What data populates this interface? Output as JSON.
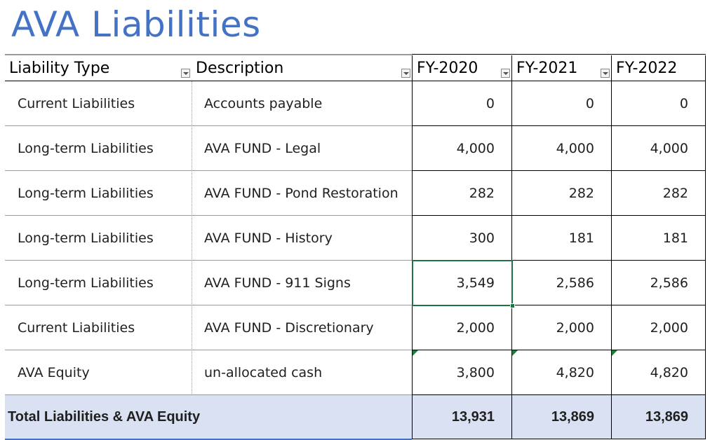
{
  "sheet_title": "AVA Liabilities",
  "headers": {
    "liability_type": "Liability Type",
    "description": "Description",
    "fy2020": "FY-2020",
    "fy2021": "FY-2021",
    "fy2022": "FY-2022"
  },
  "rows": [
    {
      "type": "Current Liabilities",
      "description": "Accounts payable",
      "fy2020": "0",
      "fy2021": "0",
      "fy2022": "0"
    },
    {
      "type": "Long-term Liabilities",
      "description": "AVA FUND - Legal",
      "fy2020": "4,000",
      "fy2021": "4,000",
      "fy2022": "4,000"
    },
    {
      "type": "Long-term Liabilities",
      "description": "AVA FUND - Pond Restoration",
      "fy2020": "282",
      "fy2021": "282",
      "fy2022": "282"
    },
    {
      "type": "Long-term Liabilities",
      "description": "AVA FUND - History",
      "fy2020": "300",
      "fy2021": "181",
      "fy2022": "181"
    },
    {
      "type": "Long-term Liabilities",
      "description": "AVA FUND - 911 Signs",
      "fy2020": "3,549",
      "fy2021": "2,586",
      "fy2022": "2,586"
    },
    {
      "type": "Current Liabilities",
      "description": "AVA FUND - Discretionary",
      "fy2020": "2,000",
      "fy2021": "2,000",
      "fy2022": "2,000"
    },
    {
      "type": "AVA Equity",
      "description": "un-allocated cash",
      "fy2020": "3,800",
      "fy2021": "4,820",
      "fy2022": "4,820"
    }
  ],
  "total": {
    "label": "Total Liabilities & AVA Equity",
    "fy2020": "13,931",
    "fy2021": "13,869",
    "fy2022": "13,869"
  },
  "colors": {
    "title": "#4472c4",
    "total_fill": "#d9e1f2",
    "selection": "#217346",
    "error_indicator": "#1e7b3a"
  }
}
